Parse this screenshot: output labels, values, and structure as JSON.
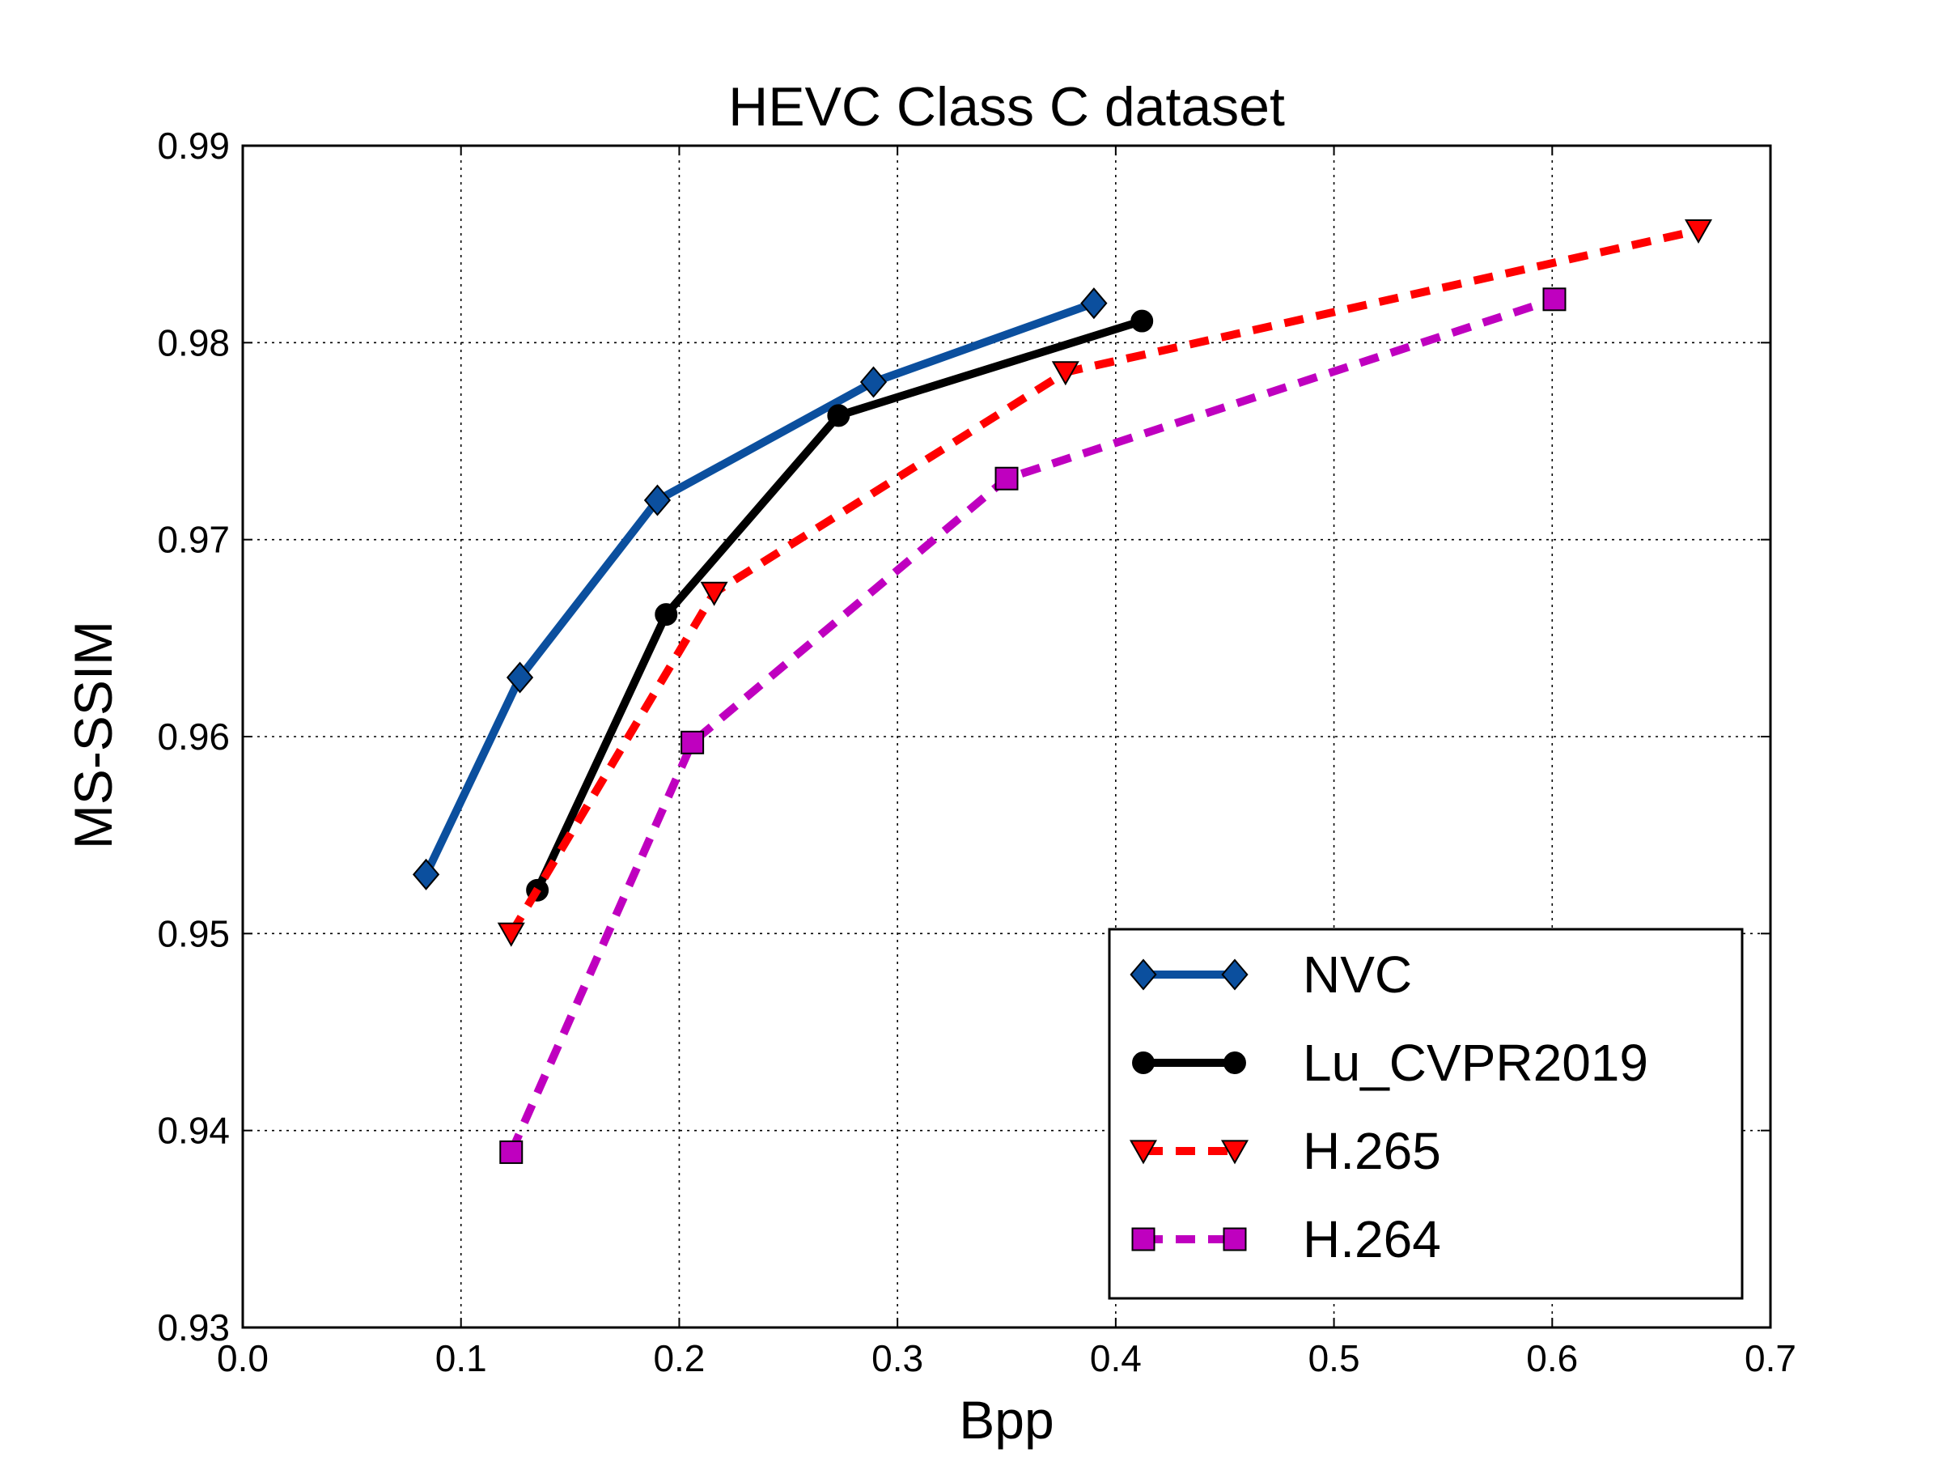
{
  "chart_data": {
    "type": "line",
    "title": "HEVC Class C dataset",
    "xlabel": "Bpp",
    "ylabel": "MS-SSIM",
    "xlim": [
      0.0,
      0.7
    ],
    "ylim": [
      0.93,
      0.99
    ],
    "xticks": [
      "0.0",
      "0.1",
      "0.2",
      "0.3",
      "0.4",
      "0.5",
      "0.6",
      "0.7"
    ],
    "yticks": [
      "0.93",
      "0.94",
      "0.95",
      "0.96",
      "0.97",
      "0.98",
      "0.99"
    ],
    "grid": true,
    "legend_position": "lower-right",
    "series": [
      {
        "name": "NVC",
        "color": "#0b4f9e",
        "line_style": "solid",
        "marker": "diamond",
        "x": [
          0.084,
          0.127,
          0.19,
          0.289,
          0.39
        ],
        "y": [
          0.953,
          0.963,
          0.972,
          0.978,
          0.982
        ]
      },
      {
        "name": "Lu_CVPR2019",
        "color": "#000000",
        "line_style": "solid",
        "marker": "circle",
        "x": [
          0.135,
          0.194,
          0.273,
          0.412
        ],
        "y": [
          0.9522,
          0.9662,
          0.9763,
          0.9811
        ]
      },
      {
        "name": "H.265",
        "color": "#ff0000",
        "line_style": "dashed",
        "marker": "triangle-down",
        "x": [
          0.123,
          0.216,
          0.377,
          0.667
        ],
        "y": [
          0.95,
          0.9673,
          0.9785,
          0.9857
        ]
      },
      {
        "name": "H.264",
        "color": "#bf00bf",
        "line_style": "dashed",
        "marker": "square",
        "x": [
          0.123,
          0.206,
          0.35,
          0.601
        ],
        "y": [
          0.9389,
          0.9597,
          0.9731,
          0.9822
        ]
      }
    ]
  }
}
